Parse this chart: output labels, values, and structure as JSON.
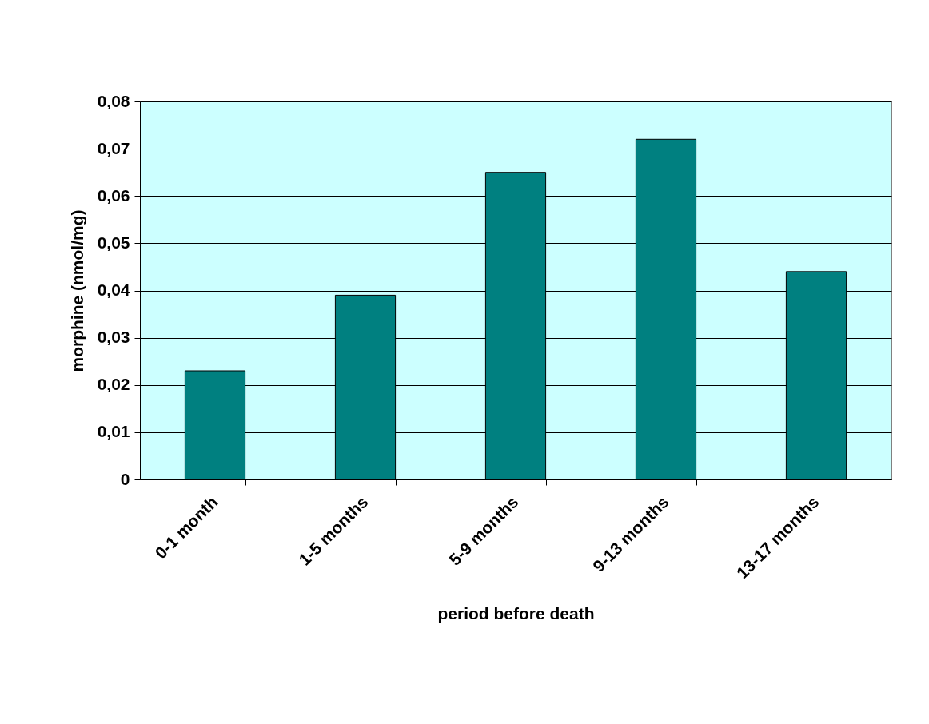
{
  "chart_data": {
    "type": "bar",
    "xlabel": "period before death",
    "ylabel": "morphine (nmol/mg)",
    "categories": [
      "0-1 month",
      "1-5 months",
      "5-9 months",
      "9-13 months",
      "13-17 months"
    ],
    "values": [
      0.023,
      0.039,
      0.065,
      0.072,
      0.044
    ],
    "color": "#008080",
    "ylim": [
      0,
      0.08
    ],
    "yticks": [
      0,
      {
        "value": 0.01,
        "label": "0,01"
      },
      {
        "value": 0.02,
        "label": "0,02"
      },
      {
        "value": 0.03,
        "label": "0,03"
      },
      {
        "value": 0.04,
        "label": "0,04"
      },
      {
        "value": 0.05,
        "label": "0,05"
      },
      {
        "value": 0.06,
        "label": "0,06"
      },
      {
        "value": 0.07,
        "label": "0,07"
      },
      {
        "value": 0.08,
        "label": "0,08"
      }
    ],
    "grid": "y"
  }
}
